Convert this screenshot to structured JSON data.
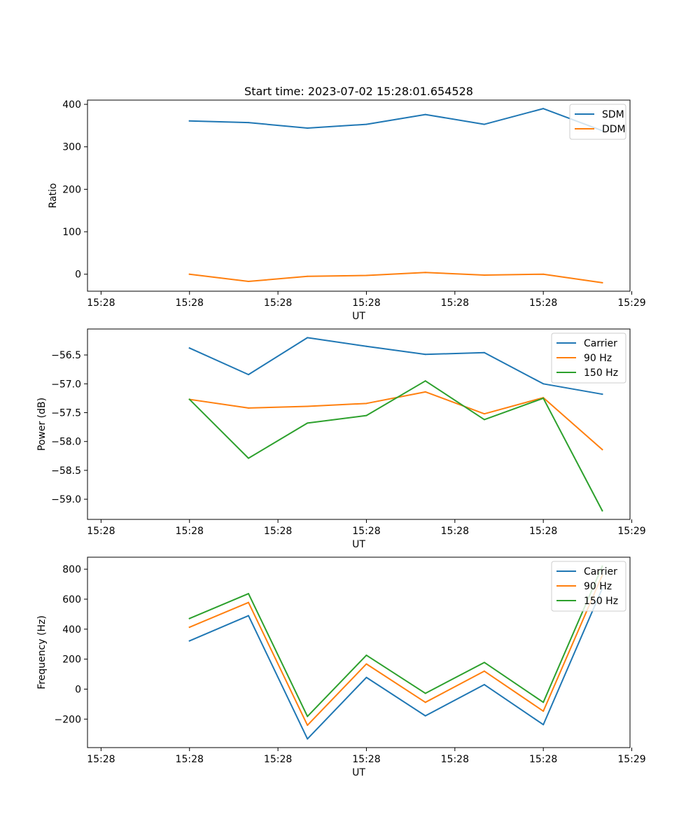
{
  "chart_data": [
    {
      "type": "line",
      "title": "Start time: 2023-07-02 15:28:01.654528",
      "xlabel": "UT",
      "ylabel": "Ratio",
      "x_tick_labels": [
        "15:28",
        "15:28",
        "15:28",
        "15:28",
        "15:28",
        "15:28",
        "15:29"
      ],
      "x": [
        1,
        2,
        3,
        4,
        5,
        6,
        7,
        8
      ],
      "xlim": [
        -0.73,
        8.47
      ],
      "x_ticks": [
        -0.5,
        1,
        2.5,
        4,
        5.5,
        7,
        8.5
      ],
      "ylim": [
        -40,
        410
      ],
      "y_ticks": [
        0,
        100,
        200,
        300,
        400
      ],
      "y_tick_labels": [
        "0",
        "100",
        "200",
        "300",
        "400"
      ],
      "legend_position": "top-right",
      "series": [
        {
          "name": "SDM",
          "color": "#1f77b4",
          "values": [
            361,
            357,
            344,
            353,
            376,
            353,
            390,
            338
          ]
        },
        {
          "name": "DDM",
          "color": "#ff7f0e",
          "values": [
            0,
            -17,
            -5,
            -3,
            4,
            -2,
            0,
            -20
          ]
        }
      ]
    },
    {
      "type": "line",
      "xlabel": "UT",
      "ylabel": "Power (dB)",
      "x_tick_labels": [
        "15:28",
        "15:28",
        "15:28",
        "15:28",
        "15:28",
        "15:28",
        "15:29"
      ],
      "x": [
        1,
        2,
        3,
        4,
        5,
        6,
        7,
        8
      ],
      "xlim": [
        -0.73,
        8.47
      ],
      "x_ticks": [
        -0.5,
        1,
        2.5,
        4,
        5.5,
        7,
        8.5
      ],
      "ylim": [
        -59.35,
        -56.05
      ],
      "y_ticks": [
        -56.5,
        -57.0,
        -57.5,
        -58.0,
        -58.5,
        -59.0
      ],
      "y_tick_labels": [
        "−56.5",
        "−57.0",
        "−57.5",
        "−58.0",
        "−58.5",
        "−59.0"
      ],
      "legend_position": "top-right",
      "series": [
        {
          "name": "Carrier",
          "color": "#1f77b4",
          "values": [
            -56.38,
            -56.84,
            -56.2,
            -56.35,
            -56.49,
            -56.46,
            -57.0,
            -57.18
          ]
        },
        {
          "name": "90 Hz",
          "color": "#ff7f0e",
          "values": [
            -57.27,
            -57.42,
            -57.39,
            -57.34,
            -57.14,
            -57.52,
            -57.24,
            -58.14
          ]
        },
        {
          "name": "150 Hz",
          "color": "#2ca02c",
          "values": [
            -57.27,
            -58.29,
            -57.68,
            -57.55,
            -56.95,
            -57.62,
            -57.25,
            -59.2
          ]
        }
      ]
    },
    {
      "type": "line",
      "xlabel": "UT",
      "ylabel": "Frequency (Hz)",
      "x_tick_labels": [
        "15:28",
        "15:28",
        "15:28",
        "15:28",
        "15:28",
        "15:28",
        "15:29"
      ],
      "x": [
        1,
        2,
        3,
        4,
        5,
        6,
        7,
        8
      ],
      "xlim": [
        -0.73,
        8.47
      ],
      "x_ticks": [
        -0.5,
        1,
        2.5,
        4,
        5.5,
        7,
        8.5
      ],
      "ylim": [
        -390,
        880
      ],
      "y_ticks": [
        -200,
        0,
        200,
        400,
        600,
        800
      ],
      "y_tick_labels": [
        "−200",
        "0",
        "200",
        "400",
        "600",
        "800"
      ],
      "legend_position": "top-right",
      "series": [
        {
          "name": "Carrier",
          "color": "#1f77b4",
          "values": [
            322,
            490,
            -332,
            78,
            -178,
            30,
            -237,
            672
          ]
        },
        {
          "name": "90 Hz",
          "color": "#ff7f0e",
          "values": [
            413,
            578,
            -241,
            168,
            -88,
            120,
            -147,
            760
          ]
        },
        {
          "name": "150 Hz",
          "color": "#2ca02c",
          "values": [
            471,
            637,
            -182,
            226,
            -28,
            178,
            -88,
            820
          ]
        }
      ]
    }
  ]
}
